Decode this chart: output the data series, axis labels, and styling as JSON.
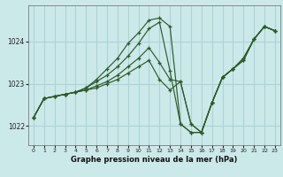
{
  "bg_color": "#cce9ea",
  "grid_color": "#aad4d5",
  "line_color": "#2d5a27",
  "title": "Graphe pression niveau de la mer (hPa)",
  "xlim": [
    -0.5,
    23.5
  ],
  "ylim": [
    1021.55,
    1024.85
  ],
  "yticks": [
    1022,
    1023,
    1024
  ],
  "xticks": [
    0,
    1,
    2,
    3,
    4,
    5,
    6,
    7,
    8,
    9,
    10,
    11,
    12,
    13,
    14,
    15,
    16,
    17,
    18,
    19,
    20,
    21,
    22,
    23
  ],
  "series": [
    [
      1022.2,
      1022.65,
      1022.7,
      1022.75,
      1022.8,
      1022.85,
      1022.9,
      1023.0,
      1023.1,
      1023.25,
      1023.4,
      1023.55,
      1023.1,
      1022.85,
      1023.05,
      1022.05,
      1021.85,
      1022.55,
      1023.15,
      1023.35,
      1023.55,
      1024.05,
      1024.35,
      1024.25
    ],
    [
      1022.2,
      1022.65,
      1022.7,
      1022.75,
      1022.8,
      1022.85,
      1022.95,
      1023.05,
      1023.2,
      1023.4,
      1023.6,
      1023.85,
      1023.5,
      1023.1,
      1023.05,
      1022.05,
      1021.85,
      1022.55,
      1023.15,
      1023.35,
      1023.55,
      1024.05,
      1024.35,
      1024.25
    ],
    [
      1022.2,
      1022.65,
      1022.7,
      1022.75,
      1022.8,
      1022.9,
      1023.05,
      1023.2,
      1023.4,
      1023.65,
      1023.95,
      1024.3,
      1024.45,
      1023.3,
      1022.05,
      1021.85,
      1021.85,
      1022.55,
      1023.15,
      1023.35,
      1023.6,
      1024.05,
      1024.35,
      1024.25
    ],
    [
      1022.2,
      1022.65,
      1022.7,
      1022.75,
      1022.8,
      1022.9,
      1023.1,
      1023.35,
      1023.6,
      1023.95,
      1024.2,
      1024.5,
      1024.55,
      1024.35,
      1022.05,
      1021.85,
      1021.85,
      1022.55,
      1023.15,
      1023.35,
      1023.6,
      1024.05,
      1024.35,
      1024.25
    ]
  ]
}
